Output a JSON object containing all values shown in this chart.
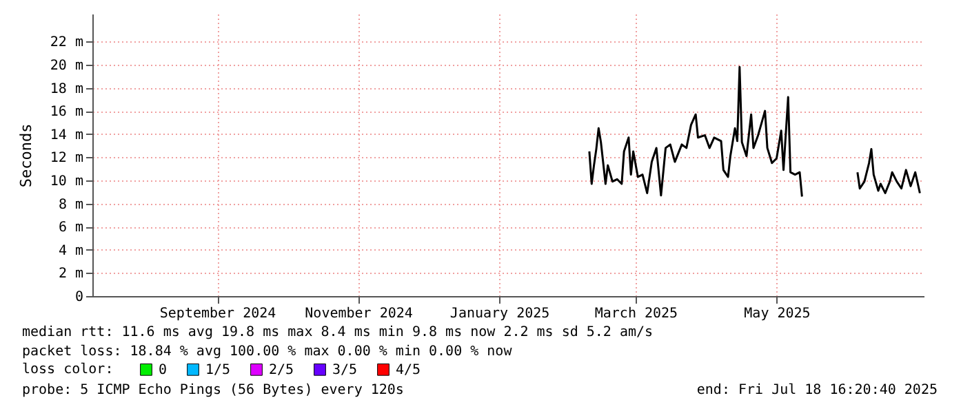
{
  "chart_data": {
    "type": "line",
    "ylabel": "Seconds",
    "x": [
      "2025-02-24",
      "2025-02-25",
      "2025-02-26",
      "2025-02-27",
      "2025-02-28",
      "2025-03-01",
      "2025-03-03",
      "2025-03-04",
      "2025-03-06",
      "2025-03-08",
      "2025-03-10",
      "2025-03-11",
      "2025-03-13",
      "2025-03-14",
      "2025-03-15",
      "2025-03-17",
      "2025-03-19",
      "2025-03-21",
      "2025-03-23",
      "2025-03-25",
      "2025-03-27",
      "2025-03-29",
      "2025-03-31",
      "2025-04-02",
      "2025-04-05",
      "2025-04-07",
      "2025-04-09",
      "2025-04-11",
      "2025-04-12",
      "2025-04-15",
      "2025-04-17",
      "2025-04-19",
      "2025-04-22",
      "2025-04-23",
      "2025-04-25",
      "2025-04-26",
      "2025-04-28",
      "2025-04-29",
      "2025-04-30",
      "2025-05-01",
      "2025-05-03",
      "2025-05-05",
      "2025-05-06",
      "2025-05-08",
      "2025-05-11",
      "2025-05-12",
      "2025-05-14",
      "2025-05-16",
      "2025-05-18",
      "2025-05-19",
      "2025-05-21",
      "2025-05-22",
      "2025-05-24",
      "2025-05-26",
      "2025-05-27",
      "2025-06-10",
      "2025-06-20",
      "2025-06-21",
      "2025-06-23",
      "2025-06-25",
      "2025-06-26",
      "2025-06-27",
      "2025-06-29",
      "2025-06-30",
      "2025-07-02",
      "2025-07-04",
      "2025-07-05",
      "2025-07-07",
      "2025-07-09",
      "2025-07-11",
      "2025-07-13",
      "2025-07-15",
      "2025-07-17"
    ],
    "series": [
      {
        "color": "#000000",
        "values": [
          12.5,
          9.7,
          11.3,
          12.7,
          14.5,
          13.3,
          9.7,
          11.3,
          9.9,
          10.1,
          9.7,
          12.5,
          13.7,
          10.5,
          12.5,
          10.3,
          10.5,
          8.9,
          11.6,
          12.8,
          8.7,
          12.8,
          13.1,
          11.6,
          13.1,
          12.8,
          14.8,
          15.7,
          13.7,
          13.9,
          12.8,
          13.7,
          13.4,
          10.9,
          10.3,
          12.1,
          14.5,
          13.4,
          19.8,
          13.3,
          12.1,
          15.7,
          12.8,
          13.9,
          16.0,
          12.8,
          11.5,
          11.9,
          14.3,
          10.9,
          17.2,
          10.7,
          10.5,
          10.7,
          8.6,
          null,
          10.7,
          9.3,
          9.9,
          11.5,
          12.7,
          10.5,
          9.1,
          9.7,
          8.9,
          9.9,
          10.7,
          9.9,
          9.3,
          10.9,
          9.5,
          10.7,
          8.9
        ]
      },
      {
        "name": "0",
        "color": "#00ee00",
        "values": [
          null,
          null,
          null,
          null,
          null,
          null,
          null,
          null,
          null,
          null,
          null,
          null,
          null,
          null,
          null,
          null,
          null,
          null,
          null,
          null,
          null,
          null,
          null,
          null,
          null,
          null,
          null,
          null,
          null,
          null,
          null,
          null,
          null,
          null,
          null,
          null,
          null,
          null,
          null,
          null,
          null,
          null,
          null,
          null,
          null,
          null,
          null,
          null,
          null,
          null,
          null,
          null,
          null,
          null,
          null,
          null,
          null,
          null,
          null,
          null,
          null,
          null,
          null,
          null,
          null,
          null,
          null,
          null,
          null,
          null,
          null,
          null,
          null
        ]
      },
      {
        "name": "1/5",
        "color": "#00b8ff",
        "values": [
          null,
          null,
          null,
          null,
          null,
          null,
          null,
          null,
          null,
          null,
          null,
          null,
          null,
          null,
          null,
          null,
          null,
          null,
          null,
          null,
          null,
          null,
          null,
          null,
          null,
          null,
          null,
          null,
          null,
          null,
          null,
          null,
          null,
          null,
          null,
          null,
          null,
          null,
          null,
          null,
          null,
          null,
          null,
          null,
          null,
          null,
          null,
          null,
          null,
          null,
          null,
          null,
          null,
          null,
          null,
          null,
          null,
          null,
          null,
          null,
          null,
          null,
          null,
          null,
          null,
          null,
          null,
          null,
          null,
          null,
          null,
          null,
          null
        ]
      },
      {
        "name": "2/5",
        "color": "#dd00ff",
        "values": [
          null,
          null,
          null,
          null,
          null,
          null,
          null,
          null,
          null,
          null,
          null,
          null,
          null,
          null,
          null,
          null,
          null,
          null,
          null,
          null,
          null,
          null,
          null,
          null,
          null,
          null,
          null,
          null,
          null,
          null,
          null,
          null,
          null,
          null,
          null,
          null,
          null,
          null,
          null,
          null,
          null,
          null,
          null,
          null,
          null,
          null,
          null,
          null,
          null,
          null,
          null,
          null,
          null,
          null,
          null,
          null,
          null,
          null,
          null,
          null,
          null,
          null,
          null,
          null,
          null,
          null,
          null,
          null,
          null,
          null,
          null,
          null,
          null
        ]
      },
      {
        "name": "3/5",
        "color": "#6600ff",
        "values": [
          null,
          null,
          null,
          null,
          null,
          null,
          null,
          null,
          null,
          null,
          null,
          null,
          null,
          null,
          null,
          null,
          null,
          null,
          null,
          null,
          null,
          null,
          null,
          null,
          null,
          null,
          null,
          null,
          null,
          null,
          null,
          null,
          null,
          null,
          null,
          null,
          null,
          null,
          null,
          null,
          null,
          null,
          null,
          null,
          null,
          null,
          null,
          null,
          null,
          null,
          null,
          null,
          null,
          null,
          null,
          null,
          null,
          null,
          null,
          null,
          null,
          null,
          null,
          null,
          null,
          null,
          null,
          null,
          null,
          null,
          null,
          null,
          null
        ]
      },
      {
        "name": "4/5",
        "color": "#ff0000",
        "values": [
          null,
          null,
          null,
          null,
          null,
          null,
          null,
          null,
          null,
          null,
          null,
          null,
          null,
          null,
          null,
          null,
          null,
          null,
          null,
          null,
          null,
          null,
          null,
          null,
          null,
          null,
          null,
          null,
          null,
          null,
          null,
          null,
          null,
          null,
          null,
          null,
          null,
          null,
          null,
          null,
          null,
          null,
          null,
          null,
          null,
          null,
          null,
          null,
          null,
          null,
          null,
          null,
          null,
          null,
          null,
          null,
          null,
          null,
          null,
          null,
          null,
          null,
          null,
          null,
          null,
          null,
          null,
          null,
          null,
          null,
          null,
          null,
          null
        ]
      }
    ],
    "legend_title": "loss color:",
    "legend": "bottom left",
    "xlim": [
      "2024-07-24",
      "2025-07-18T16:20"
    ],
    "xticks": [
      {
        "value": "2024-09-16",
        "label": "September 2024"
      },
      {
        "value": "2024-11-16",
        "label": "November 2024"
      },
      {
        "value": "2025-01-16",
        "label": "January 2025"
      },
      {
        "value": "2025-03-16",
        "label": "March 2025"
      },
      {
        "value": "2025-05-16",
        "label": "May 2025"
      }
    ],
    "ylim": [
      0,
      24.4
    ],
    "yticks": [
      0,
      {
        "value": 2,
        "label": "2 m"
      },
      {
        "value": 4,
        "label": "4 m"
      },
      {
        "value": 6,
        "label": "6 m"
      },
      {
        "value": 8,
        "label": "8 m"
      },
      {
        "value": 10,
        "label": "10 m"
      },
      {
        "value": 12,
        "label": "12 m"
      },
      {
        "value": 14,
        "label": "14 m"
      },
      {
        "value": 16,
        "label": "16 m"
      },
      {
        "value": 18,
        "label": "18 m"
      },
      {
        "value": 20,
        "label": "20 m"
      },
      {
        "value": 22,
        "label": "22 m"
      }
    ],
    "grid": true,
    "line_style": "solid",
    "annotations": [
      "median rtt:  11.6 ms avg  19.8 ms max  8.4 ms min  9.8 ms now  2.2 ms sd  5.2   am/s",
      "packet loss: 18.84 % avg  100.00 % max  0.00 % min  0.00 % now",
      "probe:       5 ICMP Echo Pings (56 Bytes) every 120s",
      "end: Fri Jul 18 16:20:40 2025"
    ]
  }
}
